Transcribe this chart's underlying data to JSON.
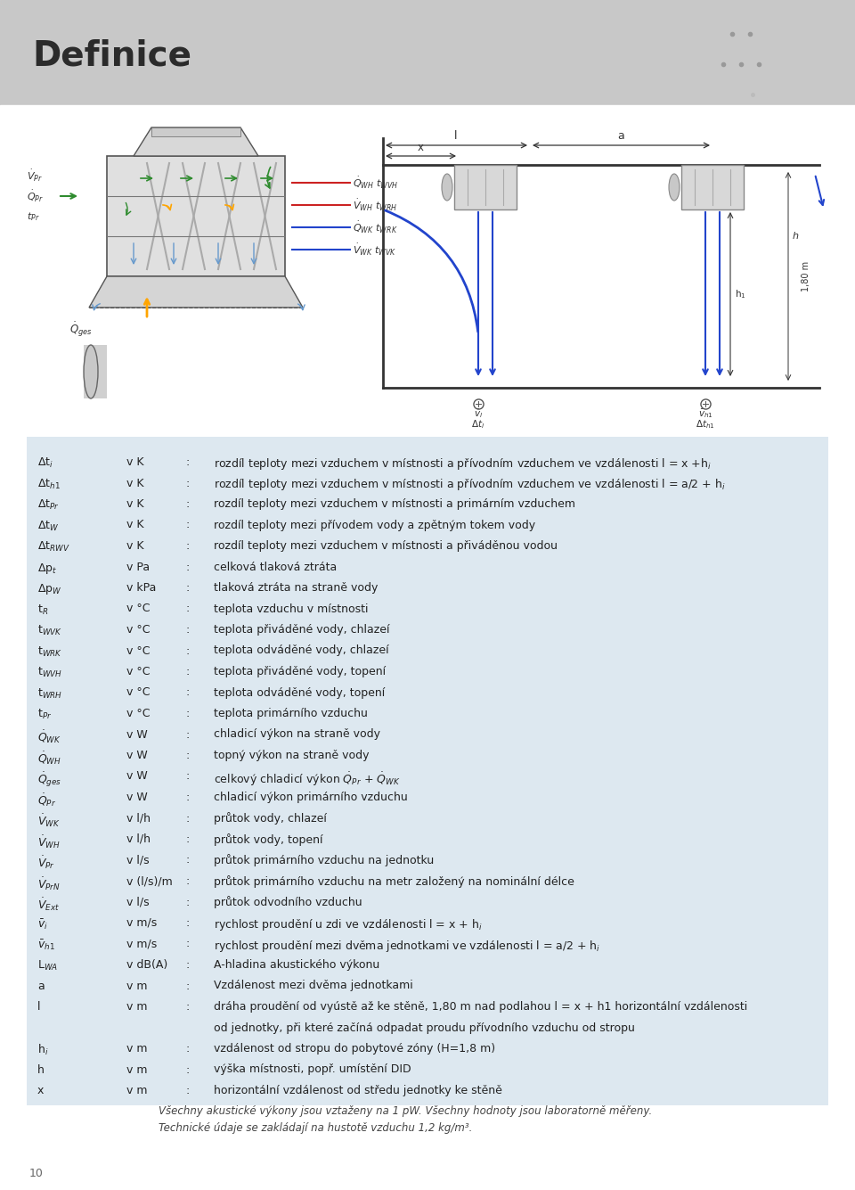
{
  "title": "Definice",
  "header_bg": "#c8c8c8",
  "table_bg": "#dde8f0",
  "page_bg": "#ffffff",
  "footer_line1": "Všechny akustické výkony jsou vztaeny na 1 pW. Všechny hodnoty jsou laboratořně měřeny.",
  "footer_line2": "Technické údaje se zakládají na hustotě vzduchu 1,2 kg/m³.",
  "page_number": "10",
  "rows": [
    [
      "Δt$_i$",
      "v K",
      "rozdíl teploty mezi vzduchem v místnosti a přívodním vzduchem ve vzdálenosti l = x +h$_i$"
    ],
    [
      "Δt$_{h1}$",
      "v K",
      "rozdíl teploty mezi vzduchem v místnosti a přívodním vzduchem ve vzdálenosti l = a/2 + h$_i$"
    ],
    [
      "Δt$_{Pr}$",
      "v K",
      "rozdíl teploty mezi vzduchem v místnosti a primárním vzduchem"
    ],
    [
      "Δt$_W$",
      "v K",
      "rozdíl teploty mezi přívodem vody a zpětným tokem vody"
    ],
    [
      "Δt$_{RWV}$",
      "v K",
      "rozdíl teploty mezi vzduchem v místnosti a přiváděnou vodou"
    ],
    [
      "Δp$_t$",
      "v Pa",
      "celková tlaková ztráta"
    ],
    [
      "Δp$_W$",
      "v kPa",
      "tlaková ztráta na straně vody"
    ],
    [
      "t$_R$",
      "v °C",
      "teplota vzduchu v místnosti"
    ],
    [
      "t$_{WVK}$",
      "v °C",
      "teplota přiváděné vody, chlazeí"
    ],
    [
      "t$_{WRK}$",
      "v °C",
      "teplota odváděné vody, chlazeí"
    ],
    [
      "t$_{WVH}$",
      "v °C",
      "teplota přiváděné vody, topení"
    ],
    [
      "t$_{WRH}$",
      "v °C",
      "teplota odváděné vody, topení"
    ],
    [
      "t$_{Pr}$",
      "v °C",
      "teplota primárního vzduchu"
    ],
    [
      "$\\dot{Q}$$_{WK}$",
      "v W",
      "chladicí výkon na straně vody"
    ],
    [
      "$\\dot{Q}$$_{WH}$",
      "v W",
      "topný výkon na straně vody"
    ],
    [
      "$\\dot{Q}$$_{ges}$",
      "v W",
      "celkový chladicí výkon $\\dot{Q}$$_{Pr}$ + $\\dot{Q}$$_{WK}$"
    ],
    [
      "$\\dot{Q}$$_{Pr}$",
      "v W",
      "chladicí výkon primárního vzduchu"
    ],
    [
      "$\\dot{V}$$_{WK}$",
      "v l/h",
      "průtok vody, chlazeí"
    ],
    [
      "$\\dot{V}$$_{WH}$",
      "v l/h",
      "průtok vody, topení"
    ],
    [
      "$\\dot{V}$$_{Pr}$",
      "v l/s",
      "průtok primárního vzduchu na jednotku"
    ],
    [
      "$\\dot{V}$$_{PrN}$",
      "v (l/s)/m",
      "průtok primárního vzduchu na metr založený na nominální délce"
    ],
    [
      "$\\dot{V}$$_{Ext}$",
      "v l/s",
      "průtok odvodního vzduchu"
    ],
    [
      "$\\bar{v}$$_i$",
      "v m/s",
      "rychlost proudění u zdi ve vzdálenosti l = x + h$_i$"
    ],
    [
      "$\\bar{v}$$_{h1}$",
      "v m/s",
      "rychlost proudění mezi dvěma jednotkami ve vzdálenosti l = a/2 + h$_i$"
    ],
    [
      "L$_{WA}$",
      "v dB(A)",
      "A-hladina akustického výkonu"
    ],
    [
      "a",
      "v m",
      "Vzdálenost mezi dvěma jednotkami"
    ],
    [
      "l",
      "v m",
      "dráha proudění od vyústě až ke stěně, 1,80 m nad podlahou l = x + h1 horizontální vzdálenosti"
    ],
    [
      "",
      "",
      "od jednotky, při které začíná odpadat proudu přívodního vzduchu od stropu"
    ],
    [
      "h$_i$",
      "v m",
      "vzdálenost od stropu do pobytové zóny (H=1,8 m)"
    ],
    [
      "h",
      "v m",
      "výška místnosti, popř. umístění DID"
    ],
    [
      "x",
      "v m",
      "horizontální vzdálenost od středu jednotky ke stěně"
    ]
  ]
}
